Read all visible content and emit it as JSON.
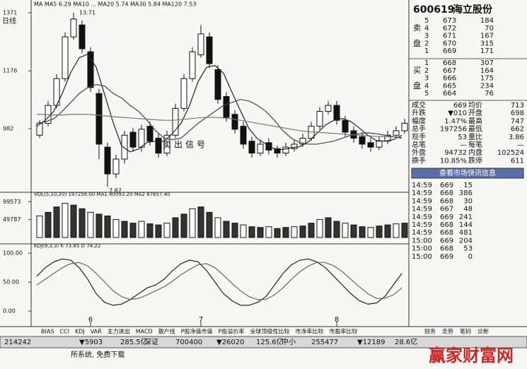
{
  "header": {
    "period": "日线",
    "ma_legend": "MA MA5 6.29 MA10 ... MA20 5.74 MA30 5.84 MA120 7.53"
  },
  "chart_data": [
    {
      "type": "candlestick",
      "categories": [
        null,
        null,
        null,
        null,
        null,
        null,
        "6",
        null,
        null,
        null,
        null,
        null,
        null,
        null,
        null,
        null,
        null,
        null,
        null,
        "7",
        null,
        null,
        null,
        null,
        null,
        null,
        null,
        null,
        null,
        null,
        null,
        null,
        null,
        null,
        null,
        "8",
        null,
        null,
        null,
        null,
        null,
        null,
        null,
        null
      ],
      "ohlc": [
        [
          960,
          1010,
          950,
          1000
        ],
        [
          1000,
          1075,
          990,
          1060
        ],
        [
          1060,
          1165,
          1050,
          1150
        ],
        [
          1150,
          1305,
          1140,
          1290
        ],
        [
          1290,
          1371,
          1280,
          1350
        ],
        [
          1330,
          1345,
          1235,
          1250
        ],
        [
          1240,
          1255,
          1105,
          1120
        ],
        [
          1100,
          1115,
          880,
          930
        ],
        [
          920,
          935,
          787,
          830
        ],
        [
          830,
          895,
          815,
          880
        ],
        [
          880,
          975,
          865,
          960
        ],
        [
          970,
          985,
          905,
          920
        ],
        [
          920,
          995,
          905,
          980
        ],
        [
          990,
          1005,
          925,
          940
        ],
        [
          950,
          965,
          885,
          900
        ],
        [
          900,
          975,
          890,
          960
        ],
        [
          960,
          1065,
          950,
          1050
        ],
        [
          1050,
          1165,
          1040,
          1150
        ],
        [
          1150,
          1255,
          1140,
          1240
        ],
        [
          1230,
          1330,
          1220,
          1300
        ],
        [
          1290,
          1305,
          1185,
          1200
        ],
        [
          1180,
          1195,
          1065,
          1080
        ],
        [
          1090,
          1105,
          1005,
          1020
        ],
        [
          1030,
          1045,
          965,
          980
        ],
        [
          990,
          1005,
          915,
          930
        ],
        [
          940,
          955,
          885,
          900
        ],
        [
          900,
          945,
          890,
          930
        ],
        [
          935,
          950,
          895,
          910
        ],
        [
          915,
          925,
          885,
          900
        ],
        [
          900,
          935,
          890,
          920
        ],
        [
          915,
          945,
          905,
          930
        ],
        [
          930,
          965,
          920,
          950
        ],
        [
          950,
          1005,
          940,
          990
        ],
        [
          990,
          1055,
          980,
          1040
        ],
        [
          1040,
          1075,
          1030,
          1060
        ],
        [
          1060,
          1075,
          995,
          1010
        ],
        [
          1010,
          1025,
          955,
          970
        ],
        [
          975,
          990,
          935,
          950
        ],
        [
          955,
          970,
          915,
          930
        ],
        [
          935,
          950,
          905,
          920
        ],
        [
          920,
          955,
          910,
          940
        ],
        [
          940,
          975,
          930,
          960
        ],
        [
          960,
          990,
          950,
          975
        ],
        [
          975,
          1015,
          965,
          1000
        ]
      ],
      "series": [
        {
          "color": "#222",
          "values": [
            990,
            1010,
            1040,
            1100,
            1170,
            1220,
            1232,
            1188,
            1096,
            1002,
            924,
            904,
            914,
            936,
            940,
            940,
            966,
            1000,
            1060,
            1140,
            1188,
            1194,
            1168,
            1104,
            1042,
            982,
            948,
            930,
            914,
            912,
            918,
            922,
            938,
            966,
            994,
            1010,
            1016,
            1006,
            984,
            960,
            942,
            940,
            945,
            960
          ]
        },
        {
          "color": "#444",
          "values": [
            1000,
            1005,
            1015,
            1040,
            1070,
            1100,
            1120,
            1130,
            1125,
            1100,
            1085,
            1060,
            1040,
            1010,
            975,
            950,
            945,
            950,
            975,
            1000,
            1020,
            1040,
            1060,
            1070,
            1080,
            1075,
            1060,
            1040,
            1010,
            975,
            950,
            935,
            930,
            930,
            935,
            940,
            950,
            960,
            965,
            968,
            965,
            960,
            955,
            950
          ]
        },
        {
          "color": "#777",
          "values": [
            1030,
            1030,
            1028,
            1028,
            1030,
            1030,
            1030,
            1028,
            1025,
            1022,
            1020,
            1018,
            1016,
            1014,
            1012,
            1010,
            1010,
            1012,
            1015,
            1018,
            1020,
            1020,
            1018,
            1015,
            1010,
            1005,
            1000,
            995,
            990,
            985,
            980,
            975,
            972,
            970,
            968,
            966,
            964,
            962,
            960,
            958,
            956,
            955,
            954,
            954
          ]
        }
      ],
      "ylim": [
        778,
        1390
      ],
      "yticks": [
        982,
        1176,
        1371
      ],
      "annotations": {
        "high": "13.71",
        "low": "7.87",
        "signal": "卖出信号"
      }
    },
    {
      "type": "bar",
      "legend": "VOL(5,10,20) 197256.00 MA1 80093.20 MA2 67657.40",
      "color": "#333",
      "values": [
        60000,
        70000,
        85000,
        95000,
        90000,
        80000,
        70000,
        65000,
        60000,
        50000,
        45000,
        40000,
        45000,
        38000,
        35000,
        40000,
        55000,
        65000,
        80000,
        85000,
        70000,
        55000,
        45000,
        40000,
        35000,
        30000,
        28000,
        30000,
        25000,
        28000,
        30000,
        32000,
        40000,
        50000,
        55000,
        45000,
        40000,
        35000,
        30000,
        28000,
        32000,
        35000,
        38000,
        40000
      ],
      "ylim": [
        0,
        110000
      ],
      "yticks": [
        49787,
        99573
      ]
    },
    {
      "type": "line",
      "legend": "KDJ(9,3,3) K 73.85 D 74.22",
      "series": [
        {
          "color": "#222",
          "values": [
            60,
            75,
            85,
            90,
            88,
            75,
            55,
            30,
            15,
            10,
            12,
            20,
            30,
            40,
            45,
            55,
            70,
            82,
            88,
            85,
            70,
            50,
            30,
            18,
            10,
            10,
            15,
            25,
            45,
            65,
            80,
            88,
            90,
            85,
            75,
            60,
            45,
            30,
            18,
            12,
            14,
            25,
            45,
            65
          ]
        },
        {
          "color": "#666",
          "values": [
            45,
            55,
            65,
            75,
            82,
            84,
            78,
            65,
            50,
            35,
            25,
            20,
            22,
            28,
            35,
            42,
            52,
            63,
            72,
            80,
            82,
            75,
            62,
            48,
            35,
            25,
            20,
            20,
            28,
            40,
            55,
            68,
            78,
            84,
            84,
            78,
            68,
            55,
            42,
            30,
            22,
            22,
            28,
            40
          ]
        }
      ],
      "ylim": [
        -6,
        110
      ],
      "yticks": [
        {
          "value": 0,
          "label": "0.00"
        },
        {
          "value": 50,
          "label": "50.00"
        },
        {
          "value": 100,
          "label": "100.00"
        }
      ]
    }
  ],
  "quote": {
    "code": "600619",
    "name": "海立股份",
    "sell_label": [
      "卖",
      "盘"
    ],
    "buy_label": [
      "买",
      "盘"
    ],
    "asks": [
      [
        "5",
        "673",
        "184"
      ],
      [
        "4",
        "672",
        "70"
      ],
      [
        "3",
        "671",
        "167"
      ],
      [
        "2",
        "670",
        "315"
      ],
      [
        "1",
        "669",
        "171"
      ]
    ],
    "bids": [
      [
        "1",
        "668",
        "307"
      ],
      [
        "2",
        "667",
        "164"
      ],
      [
        "3",
        "666",
        "175"
      ],
      [
        "4",
        "665",
        "234"
      ],
      [
        "5",
        "664",
        "76"
      ]
    ],
    "stats": [
      [
        "成交",
        "669",
        "均价",
        "713"
      ],
      [
        "升跌",
        "▼010",
        "开盘",
        "698"
      ],
      [
        "幅度",
        "1.47%",
        "最高",
        "747"
      ],
      [
        "总手",
        "197256",
        "最低",
        "662"
      ],
      [
        "现手",
        "53",
        "量比",
        "3.86"
      ],
      [
        "总笔",
        "—",
        "每笔",
        "—"
      ],
      [
        "外盘",
        "94732",
        "内盘",
        "102524"
      ],
      [
        "换手",
        "10.85%",
        "跌停",
        "611"
      ]
    ],
    "button": "查看市场快讯信息",
    "trades": [
      [
        "14:59",
        "669",
        "15"
      ],
      [
        "14:59",
        "668",
        "386"
      ],
      [
        "14:59",
        "668",
        "30"
      ],
      [
        "14:59",
        "667",
        "48"
      ],
      [
        "14:59",
        "669",
        "241"
      ],
      [
        "14:59",
        "668",
        "144"
      ],
      [
        "14:59",
        "668",
        "481"
      ],
      [
        "15:00",
        "669",
        "204"
      ],
      [
        "15:00",
        "668",
        "53"
      ],
      [
        "15:00",
        "669",
        "0"
      ]
    ]
  },
  "tabs": [
    "BIAS",
    "CCI",
    "KDJ",
    "VAR",
    "主力进出",
    "MACD",
    "散户线",
    "P股净值市值",
    "P股溢价率",
    "全球顶级性比较",
    "市净率比较",
    "市盈率比较"
  ],
  "right_tabs": [
    "财务",
    "走势",
    "笔码",
    "诊断"
  ],
  "status": [
    "214242",
    "▼5903",
    "285.5亿",
    "深证",
    "700400",
    "▼26020",
    "125.6亿",
    "中小",
    "255477",
    "▼12189",
    "28.6亿"
  ],
  "footer": "所系统, 免费下载",
  "watermark": "赢家财富网"
}
